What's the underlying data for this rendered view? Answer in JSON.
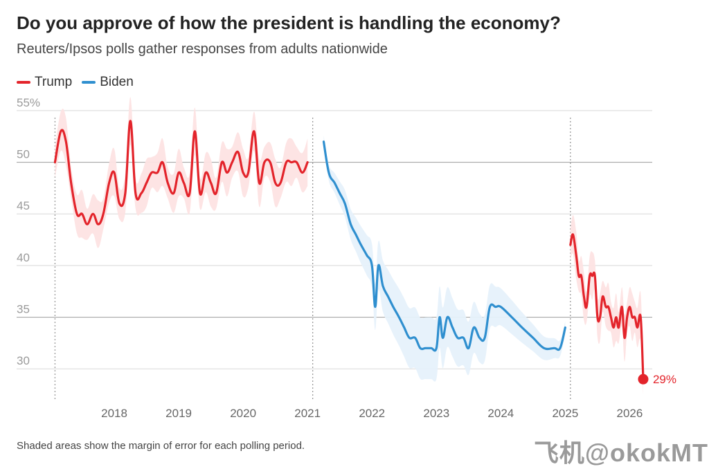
{
  "header": {
    "title": "Do you approve of how the president is handling the economy?",
    "subtitle": "Reuters/Ipsos polls gather responses from adults nationwide"
  },
  "footnote": "Shaded areas show the margin of error for each polling period.",
  "watermark": "飞机@okokMT",
  "chart_data": {
    "type": "line",
    "title": "Do you approve of how the president is handling the economy?",
    "ylabel": "",
    "xlabel": "",
    "ylim": [
      27,
      56
    ],
    "xlim": [
      2017.0,
      2026.35
    ],
    "y_ticks": [
      {
        "value": 55,
        "label": "55%"
      },
      {
        "value": 50,
        "label": "50"
      },
      {
        "value": 45,
        "label": "45"
      },
      {
        "value": 40,
        "label": "40"
      },
      {
        "value": 35,
        "label": "35"
      },
      {
        "value": 30,
        "label": "30"
      }
    ],
    "x_ticks": [
      {
        "value": 2018,
        "label": "2018"
      },
      {
        "value": 2019,
        "label": "2019"
      },
      {
        "value": 2020,
        "label": "2020"
      },
      {
        "value": 2021,
        "label": "2021"
      },
      {
        "value": 2022,
        "label": "2022"
      },
      {
        "value": 2023,
        "label": "2023"
      },
      {
        "value": 2024,
        "label": "2024"
      },
      {
        "value": 2025,
        "label": "2025"
      },
      {
        "value": 2026,
        "label": "2026"
      }
    ],
    "term_boundaries": [
      2017.08,
      2021.08,
      2025.08
    ],
    "reference_lines": [
      50,
      35
    ],
    "legend": [
      "Trump",
      "Biden"
    ],
    "colors": {
      "Trump": "#e3242b",
      "Biden": "#2f8fcf",
      "TrumpBand": "#fde3e3",
      "BidenBand": "#e6f1fb",
      "grid": "#d8d8d8",
      "refline": "#a8a8a8"
    },
    "end_label": "29%",
    "series": [
      {
        "name": "Trump",
        "x": [
          2017.08,
          2017.17,
          2017.25,
          2017.33,
          2017.42,
          2017.5,
          2017.58,
          2017.67,
          2017.75,
          2017.83,
          2017.92,
          2018.0,
          2018.08,
          2018.17,
          2018.25,
          2018.33,
          2018.42,
          2018.5,
          2018.58,
          2018.67,
          2018.75,
          2018.83,
          2018.92,
          2019.0,
          2019.08,
          2019.17,
          2019.25,
          2019.33,
          2019.42,
          2019.5,
          2019.58,
          2019.67,
          2019.75,
          2019.83,
          2019.92,
          2020.0,
          2020.08,
          2020.17,
          2020.25,
          2020.33,
          2020.42,
          2020.5,
          2020.58,
          2020.67,
          2020.75,
          2020.83,
          2020.92,
          2021.0
        ],
        "y": [
          50,
          53,
          52,
          48,
          45,
          45,
          44,
          45,
          44,
          45,
          48,
          49,
          46,
          47,
          54,
          47,
          47,
          48,
          49,
          49,
          50,
          48,
          47,
          49,
          48,
          47,
          53,
          47,
          49,
          48,
          47,
          50,
          49,
          50,
          51,
          49,
          49,
          53,
          48,
          50,
          50,
          48,
          48,
          50,
          50,
          50,
          49,
          50
        ]
      },
      {
        "name": "Biden",
        "x": [
          2021.25,
          2021.33,
          2021.42,
          2021.5,
          2021.58,
          2021.67,
          2021.75,
          2021.83,
          2021.92,
          2022.0,
          2022.05,
          2022.1,
          2022.17,
          2022.25,
          2022.33,
          2022.42,
          2022.5,
          2022.58,
          2022.67,
          2022.75,
          2022.83,
          2022.92,
          2023.0,
          2023.05,
          2023.1,
          2023.17,
          2023.25,
          2023.33,
          2023.42,
          2023.5,
          2023.58,
          2023.67,
          2023.75,
          2023.83,
          2023.92,
          2024.0,
          2024.17,
          2024.33,
          2024.5,
          2024.67,
          2024.83,
          2024.92,
          2025.0
        ],
        "y": [
          52,
          49,
          48,
          47,
          46,
          44,
          43,
          42,
          41,
          40,
          36,
          40,
          38,
          37,
          36,
          35,
          34,
          33,
          33,
          32,
          32,
          32,
          32,
          35,
          33,
          35,
          34,
          33,
          33,
          32,
          34,
          33,
          33,
          36,
          36,
          36,
          35,
          34,
          33,
          32,
          32,
          32,
          34
        ]
      },
      {
        "name": "Trump",
        "x": [
          2025.08,
          2025.12,
          2025.17,
          2025.21,
          2025.25,
          2025.29,
          2025.33,
          2025.38,
          2025.42,
          2025.46,
          2025.5,
          2025.54,
          2025.58,
          2025.63,
          2025.67,
          2025.71,
          2025.75,
          2025.79,
          2025.83,
          2025.88,
          2025.92,
          2025.96,
          2026.0,
          2026.04,
          2026.08,
          2026.12,
          2026.17,
          2026.21
        ],
        "y": [
          42,
          43,
          41,
          39,
          39,
          37,
          36,
          39,
          39,
          39,
          35,
          35,
          37,
          36,
          36,
          35,
          34,
          35,
          34,
          36,
          33,
          35,
          36,
          35,
          35,
          34,
          35,
          29
        ]
      }
    ]
  }
}
